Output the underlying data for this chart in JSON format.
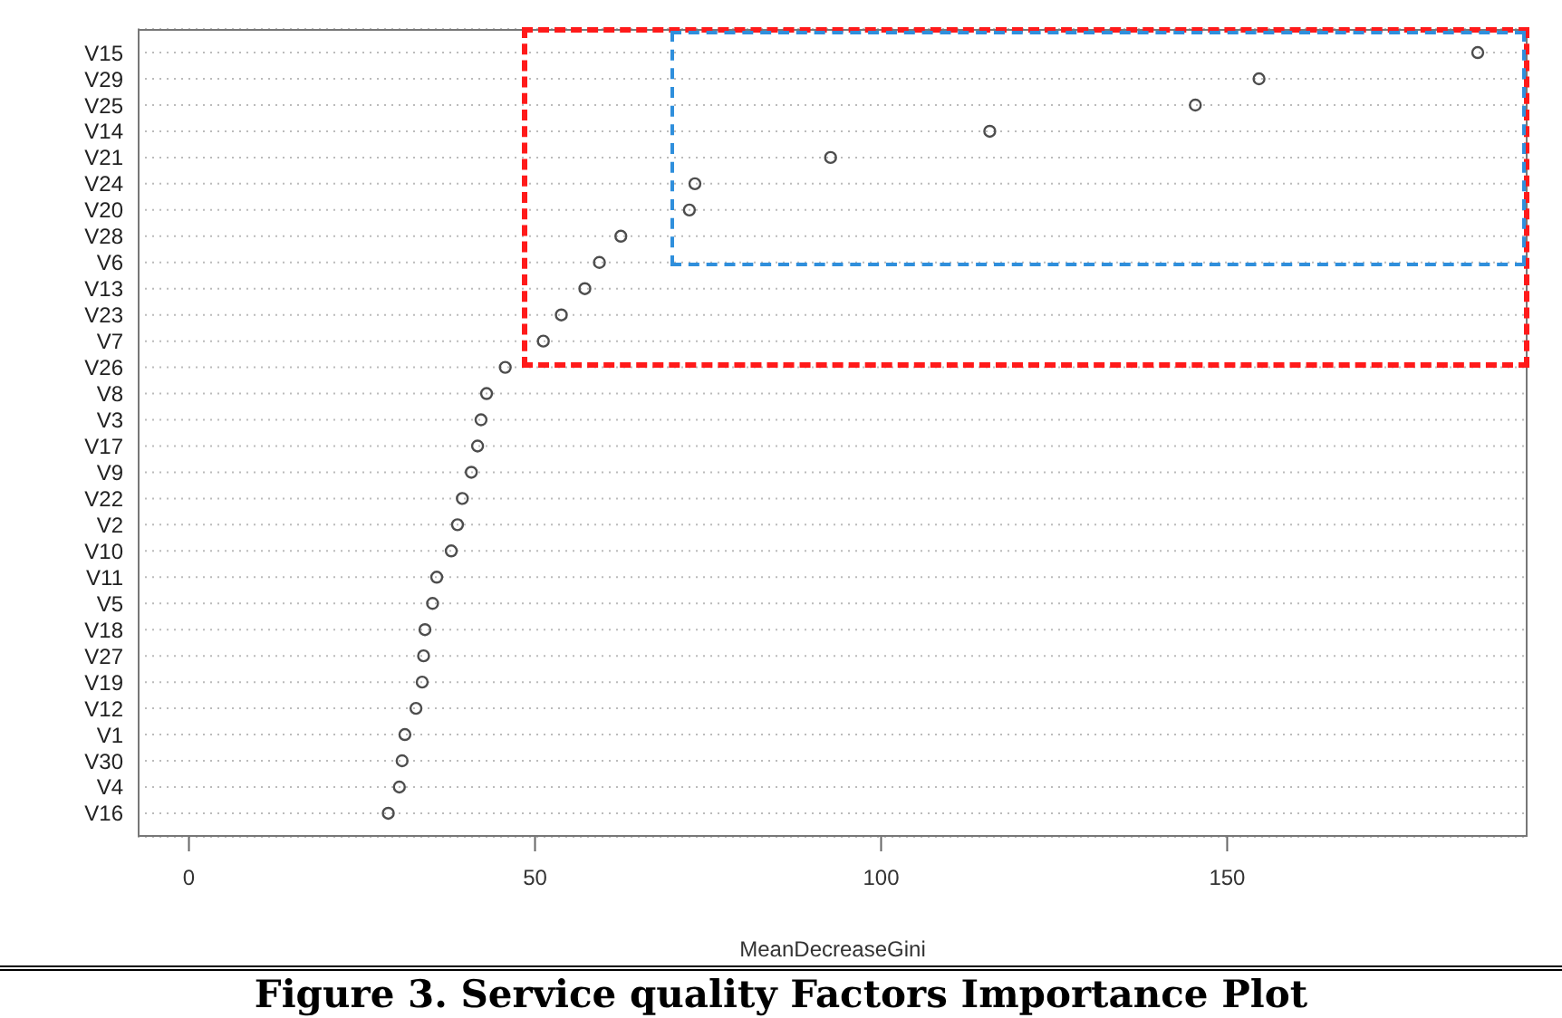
{
  "chart_data": {
    "type": "scatter",
    "title": "Figure 3. Service quality Factors Importance Plot",
    "xlabel": "MeanDecreaseGini",
    "orientation": "horizontal",
    "categories": [
      "V15",
      "V29",
      "V25",
      "V14",
      "V21",
      "V24",
      "V20",
      "V28",
      "V6",
      "V13",
      "V23",
      "V7",
      "V26",
      "V8",
      "V3",
      "V17",
      "V9",
      "V22",
      "V2",
      "V10",
      "V11",
      "V5",
      "V18",
      "V27",
      "V19",
      "V12",
      "V1",
      "V30",
      "V4",
      "V16"
    ],
    "values": [
      186.2,
      154.6,
      145.4,
      115.7,
      92.7,
      73.1,
      72.3,
      62.4,
      59.3,
      57.2,
      53.8,
      51.2,
      45.7,
      43.0,
      42.2,
      41.7,
      40.8,
      39.5,
      38.8,
      37.9,
      35.8,
      35.2,
      34.1,
      33.9,
      33.7,
      32.8,
      31.2,
      30.8,
      30.4,
      28.8
    ],
    "color": "#4d4d4d",
    "marker": "circle",
    "grid": "y",
    "xlim": [
      -7.4,
      193.4
    ],
    "xticks": [
      0,
      50,
      100,
      150
    ]
  }
}
